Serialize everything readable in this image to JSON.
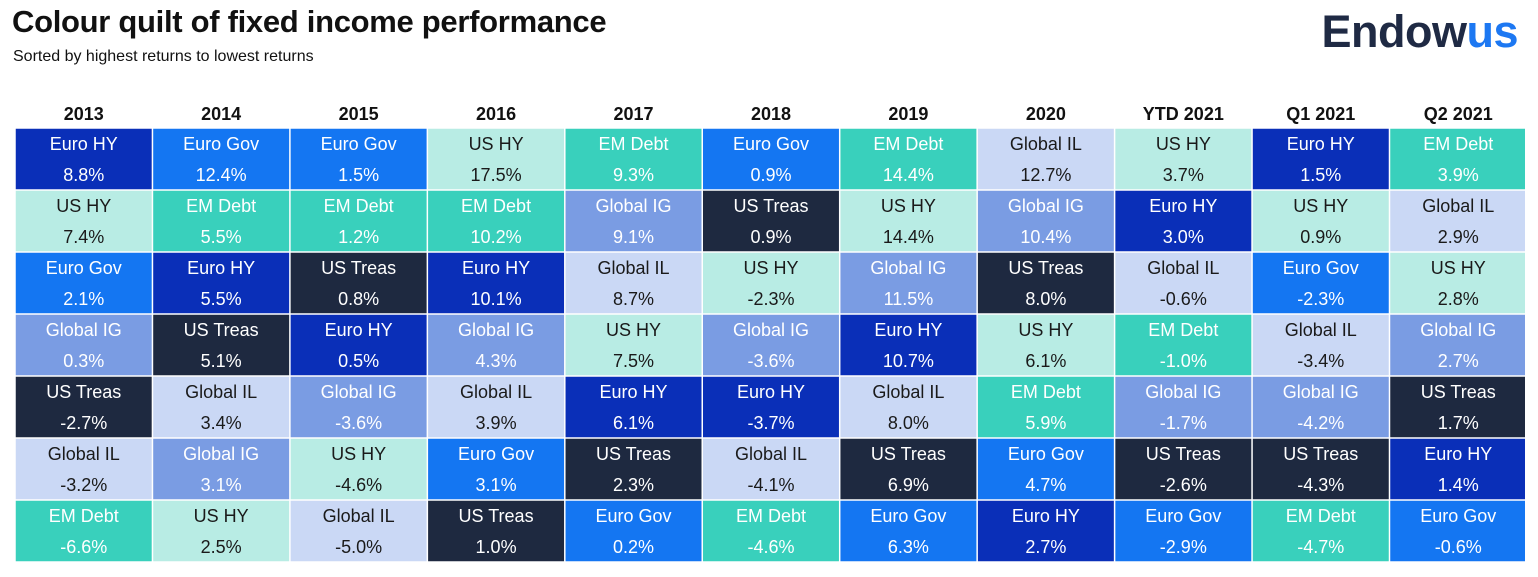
{
  "header": {
    "title": "Colour quilt of fixed income performance",
    "subtitle": "Sorted by highest returns to lowest returns",
    "logo_part1": "Endow",
    "logo_part2": "us"
  },
  "colors": {
    "Euro HY": {
      "bg": "#0a2fb8",
      "fg": "#ffffff"
    },
    "Euro Gov": {
      "bg": "#1476f2",
      "fg": "#ffffff"
    },
    "US HY": {
      "bg": "#b8ece4",
      "fg": "#1a1a1a"
    },
    "EM Debt": {
      "bg": "#39d0bc",
      "fg": "#ffffff"
    },
    "Global IL": {
      "bg": "#cad8f5",
      "fg": "#1a1a1a"
    },
    "US Treas": {
      "bg": "#1e2940",
      "fg": "#ffffff"
    },
    "Global IG": {
      "bg": "#7a9ce3",
      "fg": "#ffffff"
    }
  },
  "chart_data": {
    "type": "table",
    "title": "Colour quilt of fixed income performance",
    "subtitle": "Sorted by highest returns to lowest returns",
    "columns": [
      {
        "period": "2013",
        "entries": [
          {
            "asset": "Euro HY",
            "return": "8.8%"
          },
          {
            "asset": "US HY",
            "return": "7.4%"
          },
          {
            "asset": "Euro Gov",
            "return": "2.1%"
          },
          {
            "asset": "Global IG",
            "return": "0.3%"
          },
          {
            "asset": "US Treas",
            "return": "-2.7%"
          },
          {
            "asset": "Global IL",
            "return": "-3.2%"
          },
          {
            "asset": "EM Debt",
            "return": "-6.6%"
          }
        ]
      },
      {
        "period": "2014",
        "entries": [
          {
            "asset": "Euro Gov",
            "return": "12.4%"
          },
          {
            "asset": "EM Debt",
            "return": "5.5%"
          },
          {
            "asset": "Euro HY",
            "return": "5.5%"
          },
          {
            "asset": "US Treas",
            "return": "5.1%"
          },
          {
            "asset": "Global IL",
            "return": "3.4%"
          },
          {
            "asset": "Global IG",
            "return": "3.1%"
          },
          {
            "asset": "US HY",
            "return": "2.5%"
          }
        ]
      },
      {
        "period": "2015",
        "entries": [
          {
            "asset": "Euro Gov",
            "return": "1.5%"
          },
          {
            "asset": "EM Debt",
            "return": "1.2%"
          },
          {
            "asset": "US Treas",
            "return": "0.8%"
          },
          {
            "asset": "Euro HY",
            "return": "0.5%"
          },
          {
            "asset": "Global IG",
            "return": "-3.6%"
          },
          {
            "asset": "US HY",
            "return": "-4.6%"
          },
          {
            "asset": "Global IL",
            "return": "-5.0%"
          }
        ]
      },
      {
        "period": "2016",
        "entries": [
          {
            "asset": "US HY",
            "return": "17.5%"
          },
          {
            "asset": "EM Debt",
            "return": "10.2%"
          },
          {
            "asset": "Euro HY",
            "return": "10.1%"
          },
          {
            "asset": "Global IG",
            "return": "4.3%"
          },
          {
            "asset": "Global IL",
            "return": "3.9%"
          },
          {
            "asset": "Euro Gov",
            "return": "3.1%"
          },
          {
            "asset": "US Treas",
            "return": "1.0%"
          }
        ]
      },
      {
        "period": "2017",
        "entries": [
          {
            "asset": "EM Debt",
            "return": "9.3%"
          },
          {
            "asset": "Global IG",
            "return": "9.1%"
          },
          {
            "asset": "Global IL",
            "return": "8.7%"
          },
          {
            "asset": "US HY",
            "return": "7.5%"
          },
          {
            "asset": "Euro HY",
            "return": "6.1%"
          },
          {
            "asset": "US Treas",
            "return": "2.3%"
          },
          {
            "asset": "Euro Gov",
            "return": "0.2%"
          }
        ]
      },
      {
        "period": "2018",
        "entries": [
          {
            "asset": "Euro Gov",
            "return": "0.9%"
          },
          {
            "asset": "US Treas",
            "return": "0.9%"
          },
          {
            "asset": "US HY",
            "return": "-2.3%"
          },
          {
            "asset": "Global IG",
            "return": "-3.6%"
          },
          {
            "asset": "Euro HY",
            "return": "-3.7%"
          },
          {
            "asset": "Global IL",
            "return": "-4.1%"
          },
          {
            "asset": "EM Debt",
            "return": "-4.6%"
          }
        ]
      },
      {
        "period": "2019",
        "entries": [
          {
            "asset": "EM Debt",
            "return": "14.4%"
          },
          {
            "asset": "US HY",
            "return": "14.4%"
          },
          {
            "asset": "Global IG",
            "return": "11.5%"
          },
          {
            "asset": "Euro HY",
            "return": "10.7%"
          },
          {
            "asset": "Global IL",
            "return": "8.0%"
          },
          {
            "asset": "US Treas",
            "return": "6.9%"
          },
          {
            "asset": "Euro Gov",
            "return": "6.3%"
          }
        ]
      },
      {
        "period": "2020",
        "entries": [
          {
            "asset": "Global IL",
            "return": "12.7%"
          },
          {
            "asset": "Global IG",
            "return": "10.4%"
          },
          {
            "asset": "US Treas",
            "return": "8.0%"
          },
          {
            "asset": "US HY",
            "return": "6.1%"
          },
          {
            "asset": "EM Debt",
            "return": "5.9%"
          },
          {
            "asset": "Euro Gov",
            "return": "4.7%"
          },
          {
            "asset": "Euro HY",
            "return": "2.7%"
          }
        ]
      },
      {
        "period": "YTD 2021",
        "entries": [
          {
            "asset": "US HY",
            "return": "3.7%"
          },
          {
            "asset": "Euro HY",
            "return": "3.0%"
          },
          {
            "asset": "Global IL",
            "return": "-0.6%"
          },
          {
            "asset": "EM Debt",
            "return": "-1.0%"
          },
          {
            "asset": "Global IG",
            "return": "-1.7%"
          },
          {
            "asset": "US Treas",
            "return": "-2.6%"
          },
          {
            "asset": "Euro Gov",
            "return": "-2.9%"
          }
        ]
      },
      {
        "period": "Q1 2021",
        "entries": [
          {
            "asset": "Euro HY",
            "return": "1.5%"
          },
          {
            "asset": "US HY",
            "return": "0.9%"
          },
          {
            "asset": "Euro Gov",
            "return": "-2.3%"
          },
          {
            "asset": "Global IL",
            "return": "-3.4%"
          },
          {
            "asset": "Global IG",
            "return": "-4.2%"
          },
          {
            "asset": "US Treas",
            "return": "-4.3%"
          },
          {
            "asset": "EM Debt",
            "return": "-4.7%"
          }
        ]
      },
      {
        "period": "Q2 2021",
        "entries": [
          {
            "asset": "EM Debt",
            "return": "3.9%"
          },
          {
            "asset": "Global IL",
            "return": "2.9%"
          },
          {
            "asset": "US HY",
            "return": "2.8%"
          },
          {
            "asset": "Global IG",
            "return": "2.7%"
          },
          {
            "asset": "US Treas",
            "return": "1.7%"
          },
          {
            "asset": "Euro HY",
            "return": "1.4%"
          },
          {
            "asset": "Euro Gov",
            "return": "-0.6%"
          }
        ]
      }
    ]
  }
}
